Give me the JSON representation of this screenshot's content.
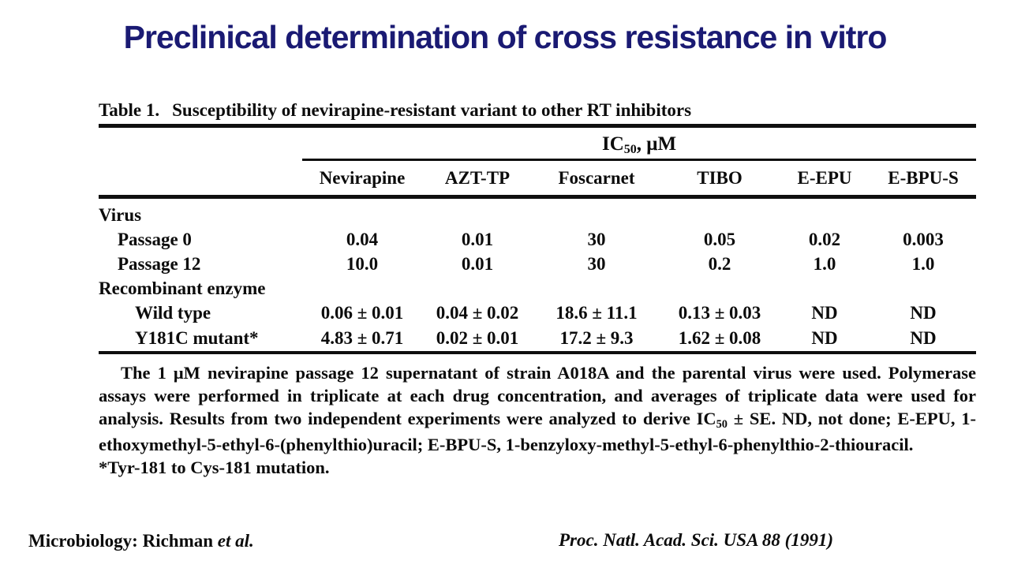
{
  "slide": {
    "title": "Preclinical determination of cross resistance in vitro",
    "title_color": "#1a1a73",
    "text_color": "#0c0c0c"
  },
  "table": {
    "caption_label": "Table 1.",
    "caption_text": "Susceptibility of nevirapine-resistant variant to other RT inhibitors",
    "unit_header": {
      "base": "IC",
      "sub": "50",
      "rest": ", μM"
    },
    "columns": [
      "Nevirapine",
      "AZT-TP",
      "Foscarnet",
      "TIBO",
      "E-EPU",
      "E-BPU-S"
    ],
    "rows": [
      {
        "label": "Virus",
        "values": [
          "",
          "",
          "",
          "",
          "",
          ""
        ]
      },
      {
        "label": "Passage 0",
        "values": [
          "0.04",
          "0.01",
          "30",
          "0.05",
          "0.02",
          "0.003"
        ]
      },
      {
        "label": "Passage 12",
        "values": [
          "10.0",
          "0.01",
          "30",
          "0.2",
          "1.0",
          "1.0"
        ]
      },
      {
        "label": "Recombinant enzyme",
        "values": [
          "",
          "",
          "",
          "",
          "",
          ""
        ]
      },
      {
        "label": "Wild type",
        "values": [
          "0.06 ± 0.01",
          "0.04 ± 0.02",
          "18.6 ± 11.1",
          "0.13 ± 0.03",
          "ND",
          "ND"
        ]
      },
      {
        "label": "Y181C mutant*",
        "values": [
          "4.83 ± 0.71",
          "0.02 ± 0.01",
          "17.2 ± 9.3",
          "1.62 ± 0.08",
          "ND",
          "ND"
        ]
      }
    ]
  },
  "footnote": {
    "p1": "The 1 μM nevirapine passage 12 supernatant of strain A018A and the parental virus were used. Polymerase assays were performed in triplicate at each drug concentration, and averages of triplicate data were used for analysis. Results from two independent experiments were analyzed to derive IC",
    "sub": "50",
    "p2": " ± SE. ND, not done; E-EPU, 1-ethoxymethyl-5-ethyl-6-(phenylthio)uracil; E-BPU-S, 1-benzyloxy-methyl-5-ethyl-6-phenylthio-2-thiouracil.",
    "mutation_note": "*Tyr-181 to Cys-181 mutation."
  },
  "footer": {
    "left_section": "Microbiology:",
    "left_name": "Richman",
    "left_etal": "et al.",
    "right_citation": "Proc. Natl. Acad. Sci. USA 88 (1991)"
  }
}
